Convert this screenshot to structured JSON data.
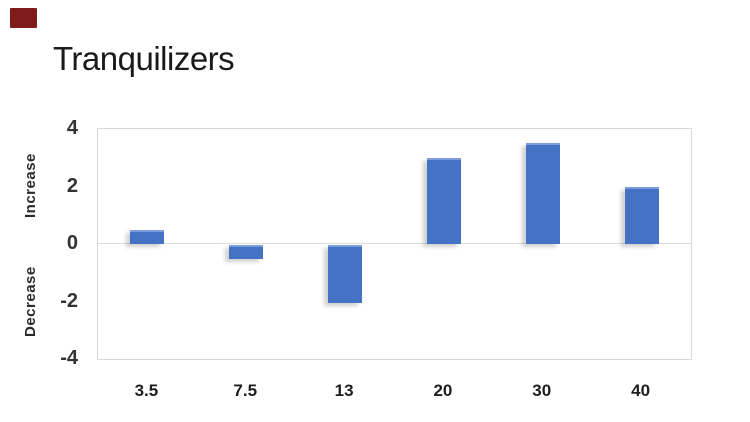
{
  "page": {
    "background": "#ffffff"
  },
  "corner_badge": {
    "color": "#7e1c1c"
  },
  "title": {
    "text": "Tranquilizers",
    "color": "#1a1a1a"
  },
  "y_axis": {
    "upper_label": "Increase",
    "lower_label": "Decrease",
    "tick_labels": [
      "4",
      "2",
      "0",
      "-2",
      "-4"
    ]
  },
  "x_axis": {
    "labels": [
      "3.5",
      "7.5",
      "13",
      "20",
      "30",
      "40"
    ]
  },
  "chart_data": {
    "type": "bar",
    "title": "Tranquilizers",
    "categories": [
      "3.5",
      "7.5",
      "13",
      "20",
      "30",
      "40"
    ],
    "values": [
      0.5,
      -0.5,
      -2,
      3,
      3.5,
      2
    ],
    "xlabel": "",
    "ylabel": "",
    "y_axis_annotations": [
      "Increase",
      "Decrease"
    ],
    "ylim": [
      -4,
      4
    ],
    "y_ticks": [
      4,
      2,
      0,
      -2,
      -4
    ],
    "bar_color": "#4472c4",
    "bar_highlight_color": "#7d9cda",
    "plot_border_color": "#d9d9d9",
    "gridlines": "zero line only",
    "legend_position": "none"
  }
}
